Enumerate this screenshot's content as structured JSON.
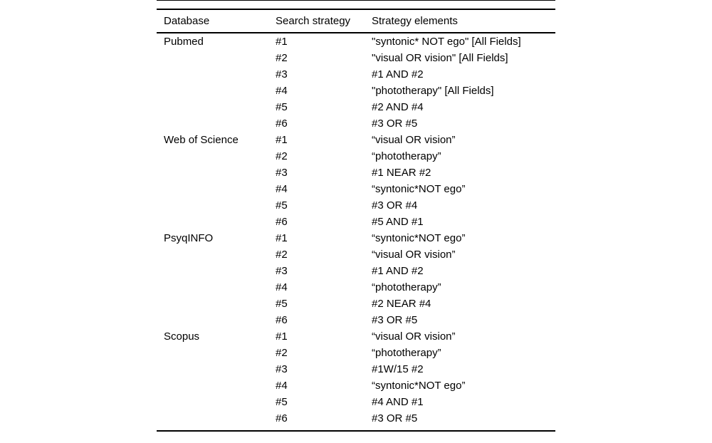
{
  "page": {
    "background": "#ffffff",
    "text_color": "#000000",
    "rule_color": "#000000"
  },
  "table": {
    "headers": {
      "database": "Database",
      "search_strategy": "Search strategy",
      "strategy_elements": "Strategy elements"
    },
    "groups": [
      {
        "database": "Pubmed",
        "steps": [
          {
            "id": "#1",
            "query": "\"syntonic* NOT ego\" [All Fields]"
          },
          {
            "id": "#2",
            "query": "\"visual OR vision\" [All Fields]"
          },
          {
            "id": "#3",
            "query": "#1 AND #2"
          },
          {
            "id": "#4",
            "query": "\"phototherapy\" [All Fields]"
          },
          {
            "id": "#5",
            "query": "#2 AND #4"
          },
          {
            "id": "#6",
            "query": "#3 OR #5"
          }
        ]
      },
      {
        "database": "Web of Science",
        "steps": [
          {
            "id": "#1",
            "query": "“visual OR vision”"
          },
          {
            "id": "#2",
            "query": "“phototherapy”"
          },
          {
            "id": "#3",
            "query": "#1 NEAR #2"
          },
          {
            "id": "#4",
            "query": "“syntonic*NOT ego”"
          },
          {
            "id": "#5",
            "query": "#3 OR #4"
          },
          {
            "id": "#6",
            "query": "#5 AND #1"
          }
        ]
      },
      {
        "database": "PsyqINFO",
        "steps": [
          {
            "id": "#1",
            "query": "“syntonic*NOT ego”"
          },
          {
            "id": "#2",
            "query": "“visual OR vision”"
          },
          {
            "id": "#3",
            "query": "#1 AND #2"
          },
          {
            "id": "#4",
            "query": "“phototherapy”"
          },
          {
            "id": "#5",
            "query": "#2 NEAR #4"
          },
          {
            "id": "#6",
            "query": "#3 OR #5"
          }
        ]
      },
      {
        "database": "Scopus",
        "steps": [
          {
            "id": "#1",
            "query": "“visual OR vision”"
          },
          {
            "id": "#2",
            "query": "“phototherapy”"
          },
          {
            "id": "#3",
            "query": "#1W/15 #2"
          },
          {
            "id": "#4",
            "query": "“syntonic*NOT ego”"
          },
          {
            "id": "#5",
            "query": "#4 AND #1"
          },
          {
            "id": "#6",
            "query": "#3 OR #5"
          }
        ]
      }
    ]
  }
}
